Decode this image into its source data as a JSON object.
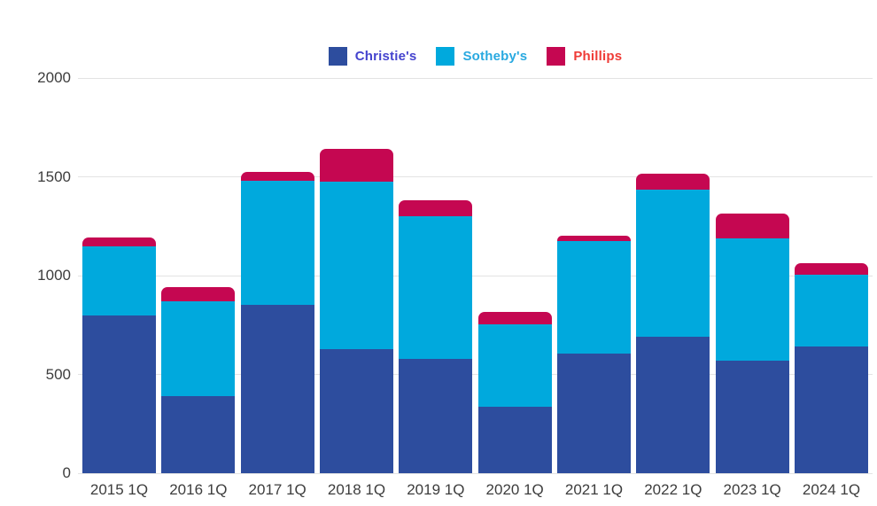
{
  "chart_data": {
    "type": "bar",
    "stacked": true,
    "title": "",
    "xlabel": "",
    "ylabel": "",
    "categories": [
      "2015 1Q",
      "2016 1Q",
      "2017 1Q",
      "2018 1Q",
      "2019 1Q",
      "2020 1Q",
      "2021 1Q",
      "2022 1Q",
      "2023 1Q",
      "2024 1Q"
    ],
    "series": [
      {
        "name": "Christie's",
        "color": "#2D4D9E",
        "values": [
          800,
          390,
          850,
          630,
          580,
          335,
          605,
          690,
          570,
          640
        ]
      },
      {
        "name": "Sotheby's",
        "color": "#00A9DD",
        "values": [
          350,
          480,
          630,
          845,
          720,
          420,
          570,
          745,
          620,
          365
        ]
      },
      {
        "name": "Phillips",
        "color": "#C50751",
        "values": [
          45,
          70,
          45,
          165,
          80,
          60,
          25,
          80,
          125,
          60
        ]
      }
    ],
    "ylim": [
      0,
      2000
    ],
    "yticks": [
      0,
      500,
      1000,
      1500,
      2000
    ],
    "grid": true,
    "legend_position": "top-center"
  },
  "legend": {
    "items": [
      {
        "label": "Christie's",
        "swatch_color": "#2D4D9E",
        "text_color": "#4443CE",
        "icon": "square-swatch-icon"
      },
      {
        "label": "Sotheby's",
        "swatch_color": "#00A9DD",
        "text_color": "#29A9E0",
        "icon": "square-swatch-icon"
      },
      {
        "label": "Phillips",
        "swatch_color": "#C50751",
        "text_color": "#EF3B36",
        "icon": "square-swatch-icon"
      }
    ]
  },
  "colors": {
    "background": "#FFFFFF",
    "gridline": "#E3E3E3",
    "axis_text": "#3D3D3D"
  }
}
